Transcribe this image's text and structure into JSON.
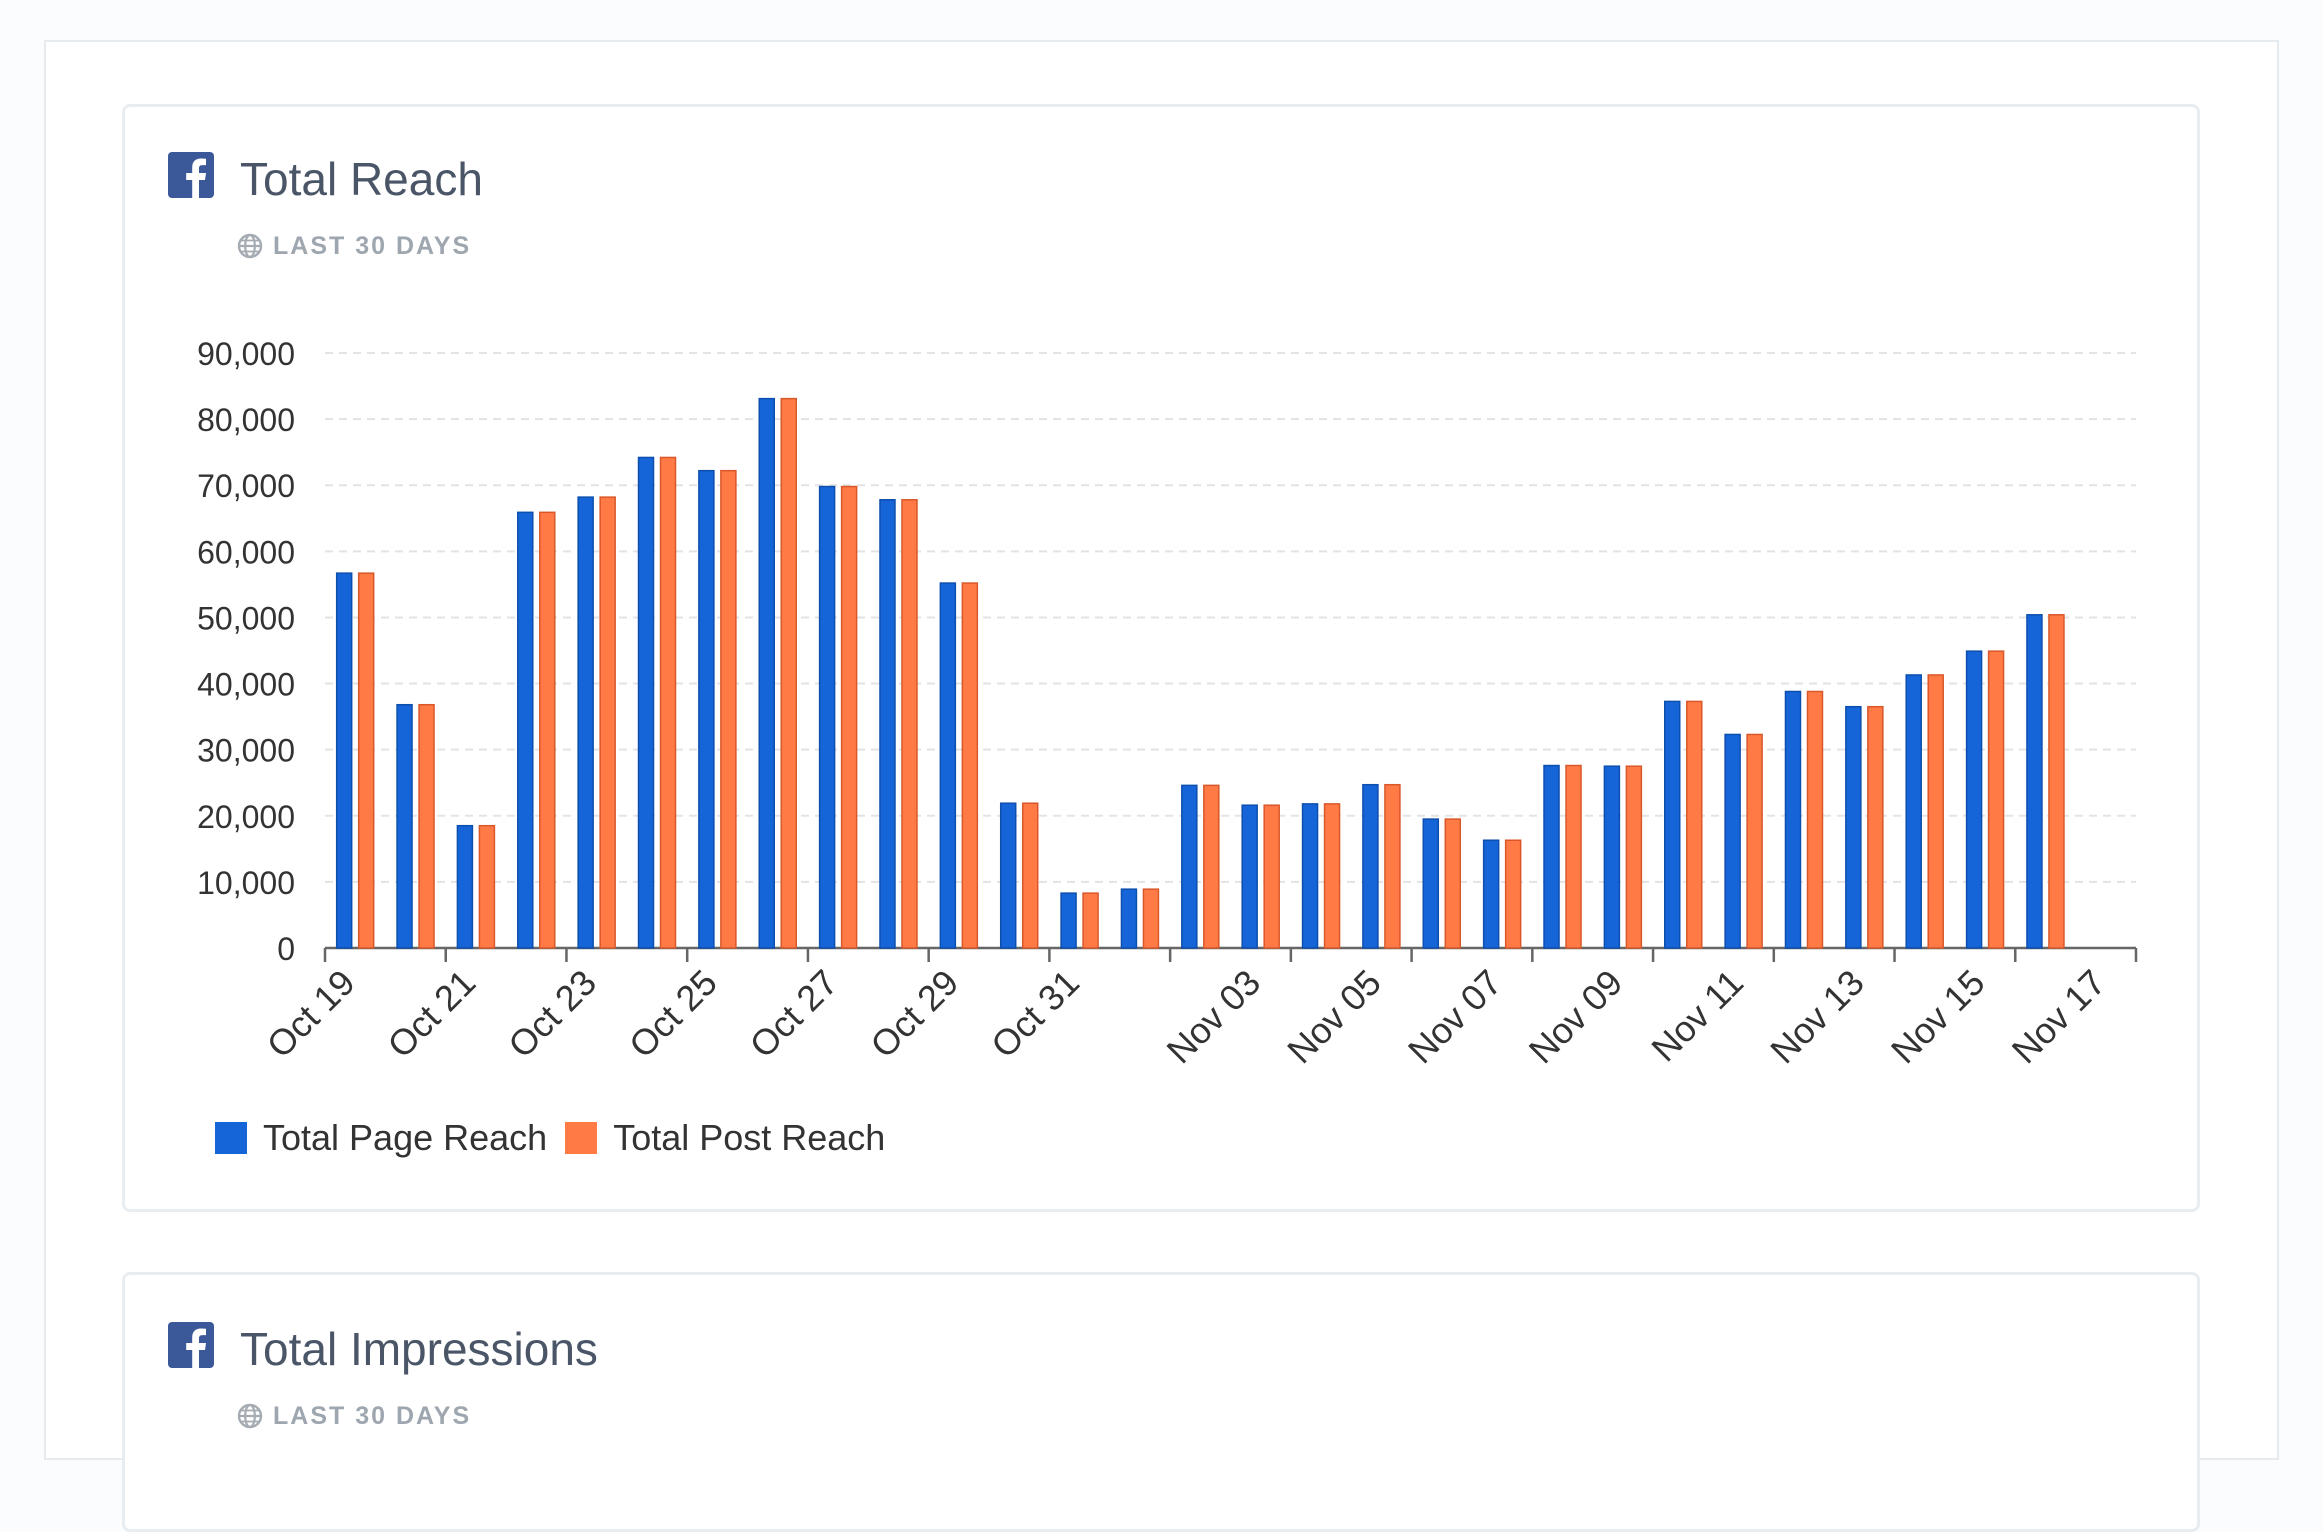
{
  "cards": [
    {
      "title": "Total Reach",
      "period": "LAST 30 DAYS"
    },
    {
      "title": "Total Impressions",
      "period": "LAST 30 DAYS"
    }
  ],
  "icons": {
    "brand": "facebook-icon",
    "period": "globe-icon"
  },
  "colors": {
    "page_reach": "#1565d8",
    "page_reach_border": "#0d4fae",
    "post_reach": "#ff7a45",
    "post_reach_border": "#d9582a",
    "facebook": "#3b5998"
  },
  "chart_data": {
    "type": "bar",
    "title": "Total Reach",
    "xlabel": "",
    "ylabel": "",
    "ylim": [
      0,
      90000
    ],
    "yticks": [
      "90,000",
      "80,000",
      "70,000",
      "60,000",
      "50,000",
      "40,000",
      "30,000",
      "20,000",
      "10,000",
      "0"
    ],
    "x": [
      "Oct 19",
      "Oct 20",
      "Oct 21",
      "Oct 22",
      "Oct 23",
      "Oct 24",
      "Oct 25",
      "Oct 26",
      "Oct 27",
      "Oct 28",
      "Oct 29",
      "Oct 30",
      "Oct 31",
      "Nov 01",
      "Nov 02",
      "Nov 03",
      "Nov 04",
      "Nov 05",
      "Nov 06",
      "Nov 07",
      "Nov 08",
      "Nov 09",
      "Nov 10",
      "Nov 11",
      "Nov 12",
      "Nov 13",
      "Nov 14",
      "Nov 15",
      "Nov 16",
      "Nov 17"
    ],
    "x_tick_labels": [
      "Oct 19",
      "Oct 21",
      "Oct 23",
      "Oct 25",
      "Oct 27",
      "Oct 29",
      "Oct 31",
      "Nov 03",
      "Nov 05",
      "Nov 07",
      "Nov 09",
      "Nov 11",
      "Nov 13",
      "Nov 15",
      "Nov 17"
    ],
    "series": [
      {
        "name": "Total Page Reach",
        "values": [
          56700,
          36800,
          18500,
          65900,
          68200,
          74200,
          72200,
          83100,
          69800,
          67800,
          55200,
          21900,
          8300,
          8900,
          24600,
          21600,
          21800,
          24700,
          19500,
          16300,
          27600,
          27500,
          37300,
          32300,
          38800,
          36500,
          41300,
          44900,
          50400,
          0
        ]
      },
      {
        "name": "Total Post Reach",
        "values": [
          56700,
          36800,
          18500,
          65900,
          68200,
          74200,
          72200,
          83100,
          69800,
          67800,
          55200,
          21900,
          8300,
          8900,
          24600,
          21600,
          21800,
          24700,
          19500,
          16300,
          27600,
          27500,
          37300,
          32300,
          38800,
          36500,
          41300,
          44900,
          50400,
          0
        ]
      }
    ],
    "grid": true,
    "legend": "bottom-left"
  }
}
